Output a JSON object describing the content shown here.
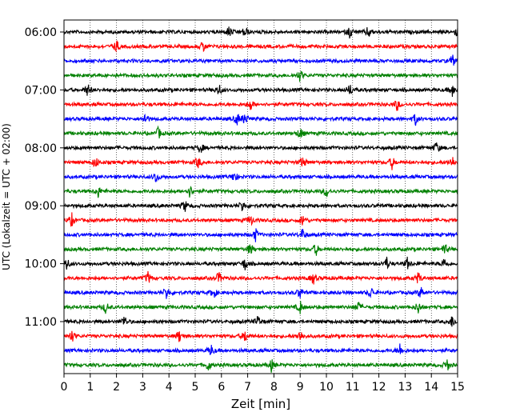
{
  "chart_data": {
    "type": "line",
    "title": "",
    "xlabel": "Zeit  [min]",
    "ylabel": "UTC (Lokalzeit = UTC + 02:00)",
    "xlim": [
      0,
      15
    ],
    "x_ticks": [
      "0",
      "1",
      "2",
      "3",
      "4",
      "5",
      "6",
      "7",
      "8",
      "9",
      "10",
      "11",
      "12",
      "13",
      "14",
      "15"
    ],
    "y_tick_labels": [
      "06:00",
      "07:00",
      "08:00",
      "09:00",
      "10:00",
      "11:00"
    ],
    "row_minutes": 15,
    "grid": "vertical dotted",
    "legend": "none",
    "colors": [
      "#000000",
      "#ff0000",
      "#0000ff",
      "#008000"
    ],
    "series": [
      {
        "start": "06:00",
        "color": "#000000",
        "events": [
          6.3,
          6.9,
          10.9,
          11.6,
          15.0
        ]
      },
      {
        "start": "06:15",
        "color": "#ff0000",
        "events": [
          2.0,
          5.3
        ]
      },
      {
        "start": "06:30",
        "color": "#0000ff",
        "events": [
          14.8
        ]
      },
      {
        "start": "06:45",
        "color": "#008000",
        "events": [
          9.0
        ]
      },
      {
        "start": "07:00",
        "color": "#000000",
        "events": [
          0.9,
          5.9,
          10.9,
          14.8
        ]
      },
      {
        "start": "07:15",
        "color": "#ff0000",
        "events": [
          7.1,
          12.7
        ]
      },
      {
        "start": "07:30",
        "color": "#0000ff",
        "events": [
          3.1,
          6.6,
          6.9,
          13.4
        ]
      },
      {
        "start": "07:45",
        "color": "#008000",
        "events": [
          3.6,
          9.0
        ]
      },
      {
        "start": "08:00",
        "color": "#000000",
        "events": [
          5.2,
          14.2
        ]
      },
      {
        "start": "08:15",
        "color": "#ff0000",
        "events": [
          1.2,
          5.1,
          9.1,
          12.5,
          14.8
        ]
      },
      {
        "start": "08:30",
        "color": "#0000ff",
        "events": [
          3.5,
          6.5
        ]
      },
      {
        "start": "08:45",
        "color": "#008000",
        "events": [
          1.3,
          4.8,
          10.0
        ]
      },
      {
        "start": "09:00",
        "color": "#000000",
        "events": [
          4.6,
          6.8
        ]
      },
      {
        "start": "09:15",
        "color": "#ff0000",
        "events": [
          0.3,
          7.1,
          9.1
        ]
      },
      {
        "start": "09:30",
        "color": "#0000ff",
        "events": [
          7.3,
          9.1
        ]
      },
      {
        "start": "09:45",
        "color": "#008000",
        "events": [
          7.1,
          9.6,
          14.5
        ]
      },
      {
        "start": "10:00",
        "color": "#000000",
        "events": [
          0.1,
          6.9,
          12.3,
          13.1,
          14.5
        ]
      },
      {
        "start": "10:15",
        "color": "#ff0000",
        "events": [
          3.2,
          5.9,
          9.5,
          13.5
        ]
      },
      {
        "start": "10:30",
        "color": "#0000ff",
        "events": [
          3.9,
          5.7,
          9.0,
          11.7,
          13.6
        ]
      },
      {
        "start": "10:45",
        "color": "#008000",
        "events": [
          1.6,
          9.0,
          11.2,
          13.5
        ]
      },
      {
        "start": "11:00",
        "color": "#000000",
        "events": [
          2.3,
          7.4,
          14.8
        ]
      },
      {
        "start": "11:15",
        "color": "#ff0000",
        "events": [
          0.3,
          4.4,
          6.9,
          9.0
        ]
      },
      {
        "start": "11:30",
        "color": "#0000ff",
        "events": [
          5.6,
          12.8
        ]
      },
      {
        "start": "11:45",
        "color": "#008000",
        "events": [
          5.5,
          7.9,
          14.6
        ]
      }
    ]
  }
}
